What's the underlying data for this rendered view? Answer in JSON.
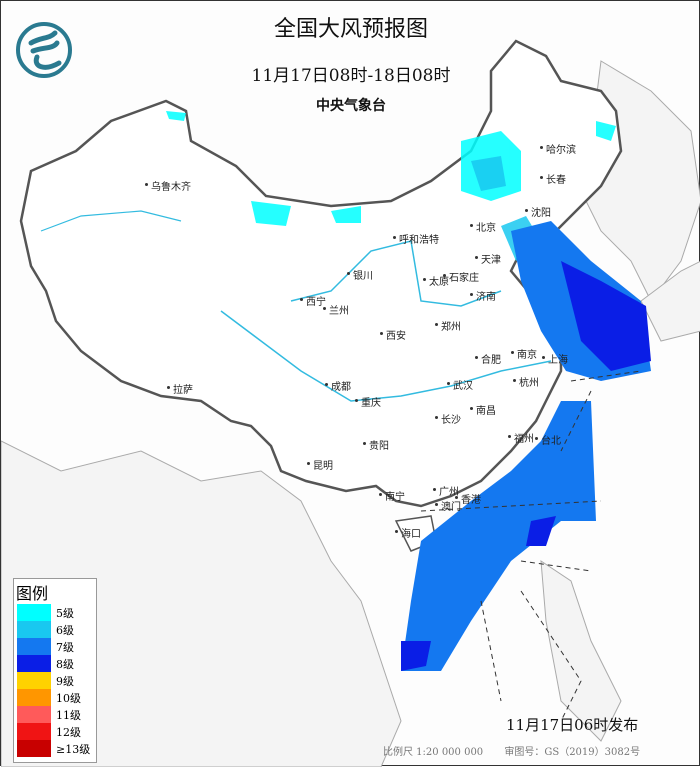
{
  "header": {
    "title": "全国大风预报图",
    "period": "11月17日08时-18日08时",
    "agency": "中央气象台",
    "logo_icon": "cma-logo-icon"
  },
  "legend": {
    "title": "图例",
    "items": [
      {
        "label": "5级",
        "color": "#00ffff"
      },
      {
        "label": "6级",
        "color": "#19c8f0"
      },
      {
        "label": "7级",
        "color": "#1478f0"
      },
      {
        "label": "8级",
        "color": "#0a1ee6"
      },
      {
        "label": "9级",
        "color": "#ffd200"
      },
      {
        "label": "10级",
        "color": "#ff9600"
      },
      {
        "label": "11级",
        "color": "#ff5a5a"
      },
      {
        "label": "12级",
        "color": "#f01414"
      },
      {
        "label": "≥13级",
        "color": "#c80000"
      }
    ]
  },
  "cities": [
    "乌鲁木齐",
    "哈尔滨",
    "长春",
    "沈阳",
    "北京",
    "天津",
    "呼和浩特",
    "银川",
    "太原",
    "石家庄",
    "济南",
    "西宁",
    "兰州",
    "西安",
    "郑州",
    "合肥",
    "南京",
    "上海",
    "杭州",
    "武汉",
    "成都",
    "重庆",
    "长沙",
    "南昌",
    "拉萨",
    "贵阳",
    "福州",
    "台北",
    "昆明",
    "南宁",
    "广州",
    "香港",
    "澳门",
    "海口"
  ],
  "footer": {
    "issued": "11月17日06时发布",
    "scale": "比例尺 1:20 000 000",
    "approval": "审图号：GS（2019）3082号"
  }
}
